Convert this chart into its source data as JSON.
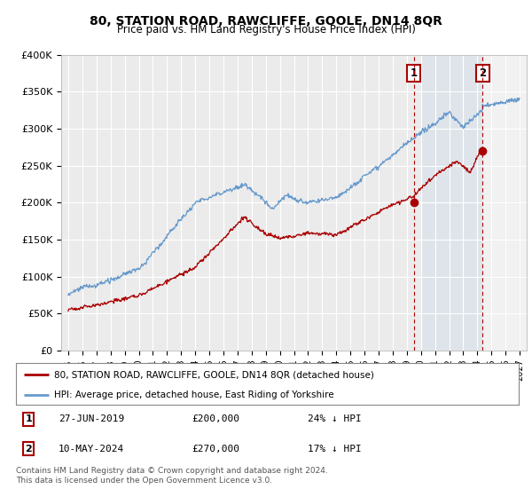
{
  "title": "80, STATION ROAD, RAWCLIFFE, GOOLE, DN14 8QR",
  "subtitle": "Price paid vs. HM Land Registry's House Price Index (HPI)",
  "title_fontsize": 10,
  "subtitle_fontsize": 8.5,
  "ylim": [
    0,
    400000
  ],
  "yticks": [
    0,
    50000,
    100000,
    150000,
    200000,
    250000,
    300000,
    350000,
    400000
  ],
  "ytick_labels": [
    "£0",
    "£50K",
    "£100K",
    "£150K",
    "£200K",
    "£250K",
    "£300K",
    "£350K",
    "£400K"
  ],
  "hpi_color": "#6699cc",
  "price_color": "#aa0000",
  "annotation1_date": "27-JUN-2019",
  "annotation1_price": "£200,000",
  "annotation1_hpi": "24% ↓ HPI",
  "annotation1_year": 2019.5,
  "annotation1_value": 200000,
  "annotation2_date": "10-MAY-2024",
  "annotation2_price": "£270,000",
  "annotation2_hpi": "17% ↓ HPI",
  "annotation2_year": 2024.37,
  "annotation2_value": 270000,
  "legend_label_price": "80, STATION ROAD, RAWCLIFFE, GOOLE, DN14 8QR (detached house)",
  "legend_label_hpi": "HPI: Average price, detached house, East Riding of Yorkshire",
  "footer": "Contains HM Land Registry data © Crown copyright and database right 2024.\nThis data is licensed under the Open Government Licence v3.0.",
  "background_color": "#ffffff",
  "plot_bg_color": "#ebebeb",
  "grid_color": "#ffffff",
  "blue_shade_start": 2020.0,
  "hatch_start": 2024.37,
  "xlim_left": 1994.5,
  "xlim_right": 2027.5
}
